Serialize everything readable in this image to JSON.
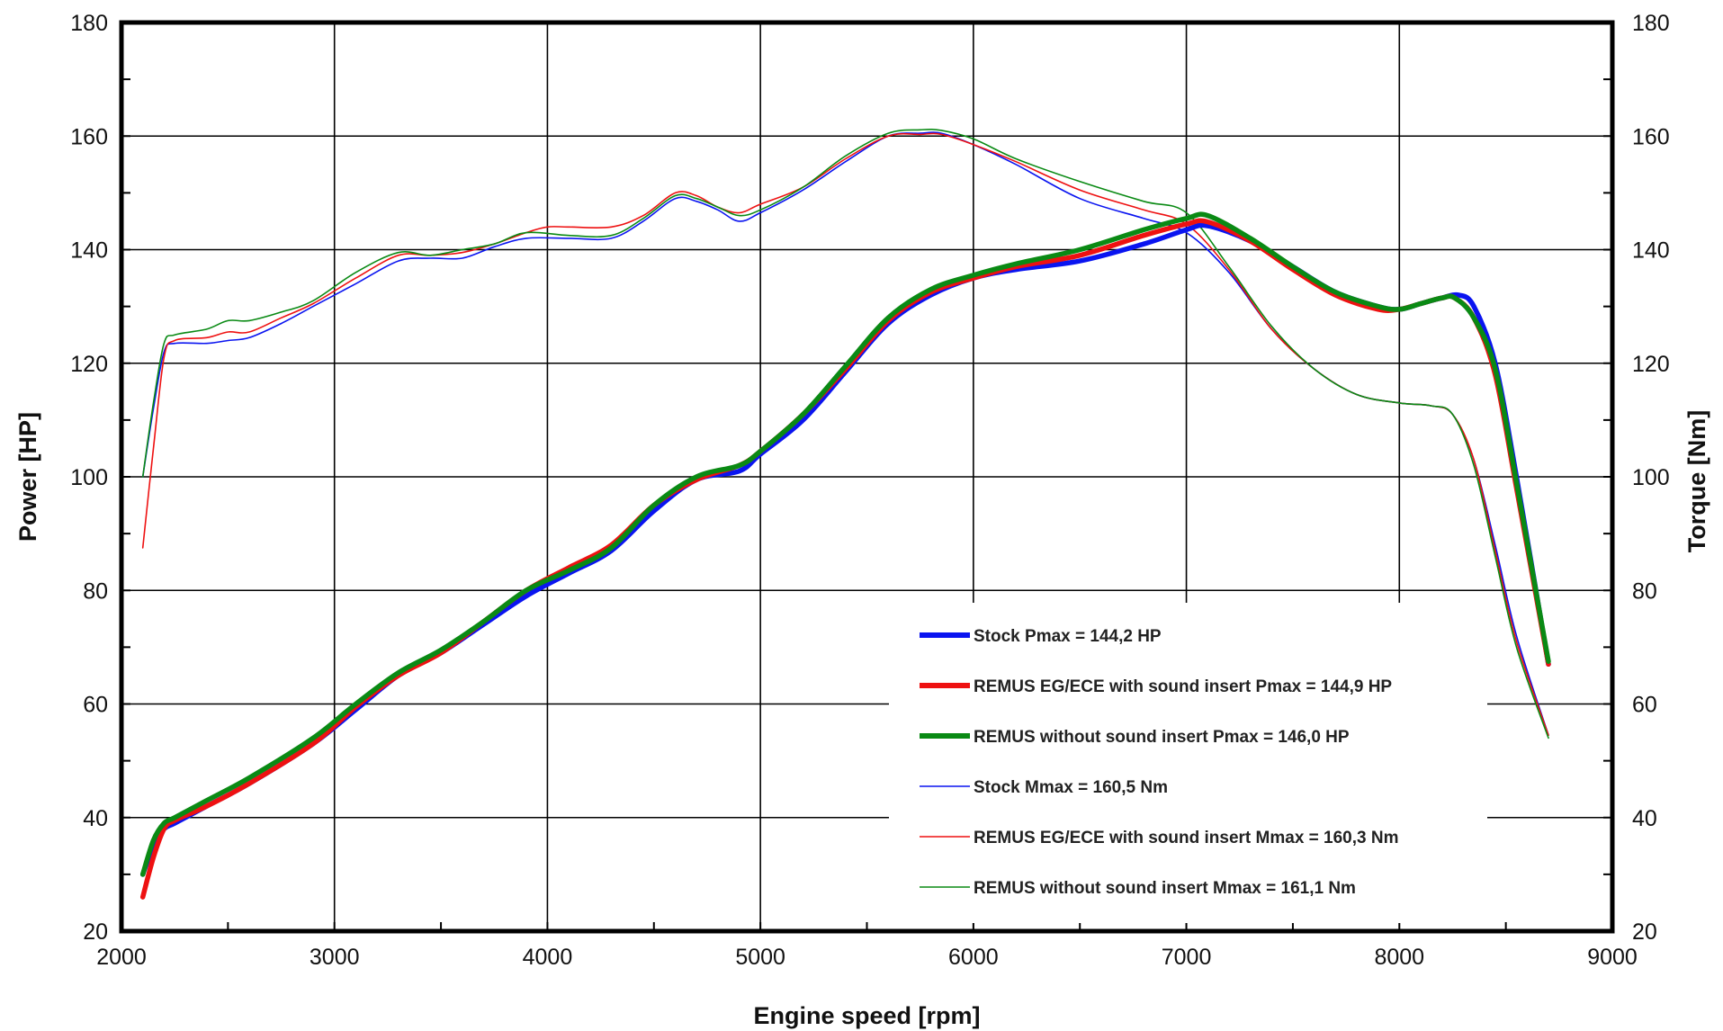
{
  "chart_data": {
    "type": "line",
    "xlabel": "Engine speed [rpm]",
    "ylabel": "Power [HP]",
    "y2label": "Torque [Nm]",
    "xlim": [
      2000,
      9000
    ],
    "ylim": [
      20,
      180
    ],
    "y2lim": [
      20,
      180
    ],
    "x_ticks": [
      "2000",
      "3000",
      "4000",
      "5000",
      "6000",
      "7000",
      "8000",
      "9000"
    ],
    "y_ticks": [
      "20",
      "40",
      "60",
      "80",
      "100",
      "120",
      "140",
      "160",
      "180"
    ],
    "y2_ticks": [
      "20",
      "40",
      "60",
      "80",
      "100",
      "120",
      "140",
      "160",
      "180"
    ],
    "grid": true,
    "legend_position": "center-right",
    "series": [
      {
        "name": "Stock Pmax = 144,2 HP",
        "color": "#0a14f0",
        "weight": "bold",
        "x": [
          2100,
          2150,
          2200,
          2250,
          2400,
          2600,
          2900,
          3100,
          3300,
          3500,
          3700,
          3900,
          4100,
          4300,
          4500,
          4700,
          4900,
          5000,
          5200,
          5400,
          5600,
          5800,
          6000,
          6200,
          6500,
          6800,
          7000,
          7100,
          7300,
          7500,
          7700,
          7900,
          8000,
          8100,
          8200,
          8280,
          8350,
          8450,
          8550,
          8700
        ],
        "y": [
          30,
          35,
          38,
          39,
          42,
          46,
          53,
          59,
          65,
          69,
          74,
          79,
          83,
          87,
          94,
          99.5,
          101,
          104,
          110,
          118.5,
          127,
          132,
          135,
          136.5,
          138,
          141,
          143.5,
          144.2,
          141.5,
          137,
          132.5,
          130,
          129.5,
          130.5,
          131.5,
          132,
          130,
          120,
          100,
          67
        ]
      },
      {
        "name": "REMUS EG/ECE with sound insert Pmax =  144,9 HP",
        "color": "#ee1111",
        "weight": "bold",
        "x": [
          2100,
          2150,
          2200,
          2250,
          2400,
          2600,
          2900,
          3100,
          3300,
          3500,
          3700,
          3900,
          4100,
          4300,
          4500,
          4700,
          4900,
          5000,
          5200,
          5400,
          5600,
          5800,
          6000,
          6200,
          6500,
          6800,
          7000,
          7100,
          7300,
          7500,
          7700,
          7900,
          8000,
          8100,
          8200,
          8260,
          8350,
          8450,
          8550,
          8700
        ],
        "y": [
          26,
          33,
          38,
          39.5,
          42,
          46,
          53,
          59.5,
          65,
          69,
          74.5,
          80,
          84,
          88,
          95,
          99.5,
          102,
          104.5,
          111,
          119,
          127.5,
          132.5,
          135,
          137,
          139,
          142.5,
          144.5,
          144.9,
          141.5,
          136.5,
          132,
          129.5,
          129.5,
          130.5,
          131.5,
          131.5,
          128,
          118,
          98,
          67
        ]
      },
      {
        "name": "REMUS without sound insert Pmax = 146,0 HP",
        "color": "#0a8a14",
        "weight": "bold",
        "x": [
          2100,
          2150,
          2200,
          2250,
          2400,
          2600,
          2900,
          3100,
          3300,
          3500,
          3700,
          3900,
          4100,
          4300,
          4500,
          4700,
          4900,
          5000,
          5200,
          5400,
          5600,
          5800,
          6000,
          6200,
          6500,
          6800,
          7000,
          7100,
          7300,
          7500,
          7700,
          7900,
          8000,
          8100,
          8200,
          8260,
          8350,
          8450,
          8550,
          8700
        ],
        "y": [
          30,
          36,
          39,
          40,
          43,
          47,
          54,
          60,
          65.5,
          69.5,
          74.5,
          80,
          83.5,
          87.5,
          95,
          100,
          102,
          104.5,
          111,
          119.5,
          128,
          133,
          135.5,
          137.5,
          140,
          143.5,
          145.5,
          146,
          142,
          137,
          132.5,
          130,
          129.5,
          130.5,
          131.5,
          131.5,
          128,
          119,
          99,
          67.5
        ]
      },
      {
        "name": "Stock Mmax = 160,5 Nm",
        "color": "#0a14f0",
        "weight": "normal",
        "x": [
          2100,
          2150,
          2200,
          2250,
          2400,
          2500,
          2600,
          2750,
          2900,
          3100,
          3300,
          3450,
          3600,
          3750,
          3900,
          4100,
          4300,
          4450,
          4600,
          4700,
          4800,
          4900,
          5000,
          5200,
          5400,
          5600,
          5750,
          5850,
          6000,
          6200,
          6500,
          6800,
          7000,
          7200,
          7400,
          7600,
          7800,
          8000,
          8150,
          8250,
          8350,
          8450,
          8550,
          8700
        ],
        "y": [
          100,
          112,
          122,
          123.5,
          123.5,
          124,
          124.5,
          127,
          130,
          134,
          138,
          138.5,
          138.5,
          140.5,
          142,
          142,
          142,
          145,
          149,
          148.5,
          147,
          145,
          146.5,
          150.5,
          155.5,
          160,
          160.5,
          160.5,
          158.5,
          155,
          149,
          145.5,
          143,
          136,
          126,
          119,
          114.5,
          113,
          112.5,
          111,
          103,
          88,
          72,
          54.5
        ]
      },
      {
        "name": "REMUS EG/ECE with sound insert Mmax = 160,3 Nm",
        "color": "#ee1111",
        "weight": "normal",
        "x": [
          2100,
          2150,
          2200,
          2250,
          2400,
          2500,
          2600,
          2750,
          2900,
          3100,
          3300,
          3450,
          3600,
          3750,
          3900,
          4000,
          4100,
          4300,
          4450,
          4600,
          4700,
          4800,
          4900,
          5000,
          5200,
          5400,
          5600,
          5750,
          5850,
          6000,
          6200,
          6500,
          6800,
          7000,
          7200,
          7400,
          7600,
          7800,
          8000,
          8150,
          8250,
          8350,
          8450,
          8550,
          8700
        ],
        "y": [
          87.5,
          105,
          121,
          124,
          124.5,
          125.5,
          125.5,
          128,
          130.5,
          135,
          139,
          139,
          139.5,
          141,
          143,
          144,
          144,
          144,
          146,
          150,
          149.5,
          147.5,
          146.5,
          148,
          151,
          156,
          160,
          160.3,
          160.3,
          158.5,
          155.5,
          150.5,
          147,
          144.5,
          136.5,
          126,
          119,
          114.5,
          113,
          112.5,
          111,
          103,
          87,
          71,
          54.5
        ]
      },
      {
        "name": "REMUS without sound insert Mmax = 161,1 Nm",
        "color": "#0a8a14",
        "weight": "normal",
        "x": [
          2100,
          2150,
          2200,
          2250,
          2400,
          2500,
          2600,
          2750,
          2900,
          3100,
          3300,
          3450,
          3600,
          3750,
          3900,
          4100,
          4300,
          4450,
          4600,
          4700,
          4800,
          4900,
          5000,
          5200,
          5400,
          5600,
          5750,
          5850,
          6000,
          6200,
          6500,
          6800,
          7000,
          7200,
          7400,
          7600,
          7800,
          8000,
          8150,
          8250,
          8350,
          8450,
          8550,
          8700
        ],
        "y": [
          100,
          113,
          123.5,
          125,
          126,
          127.5,
          127.5,
          129,
          131,
          136,
          139.5,
          139,
          140,
          141,
          143,
          142.5,
          142.5,
          145.5,
          149.5,
          149,
          147.5,
          146,
          147,
          151,
          156.5,
          160.5,
          161.1,
          161,
          159.5,
          156,
          152,
          148.5,
          146.5,
          137,
          126.5,
          119,
          114.5,
          113,
          112.5,
          111,
          102,
          86,
          70,
          54
        ]
      }
    ]
  }
}
